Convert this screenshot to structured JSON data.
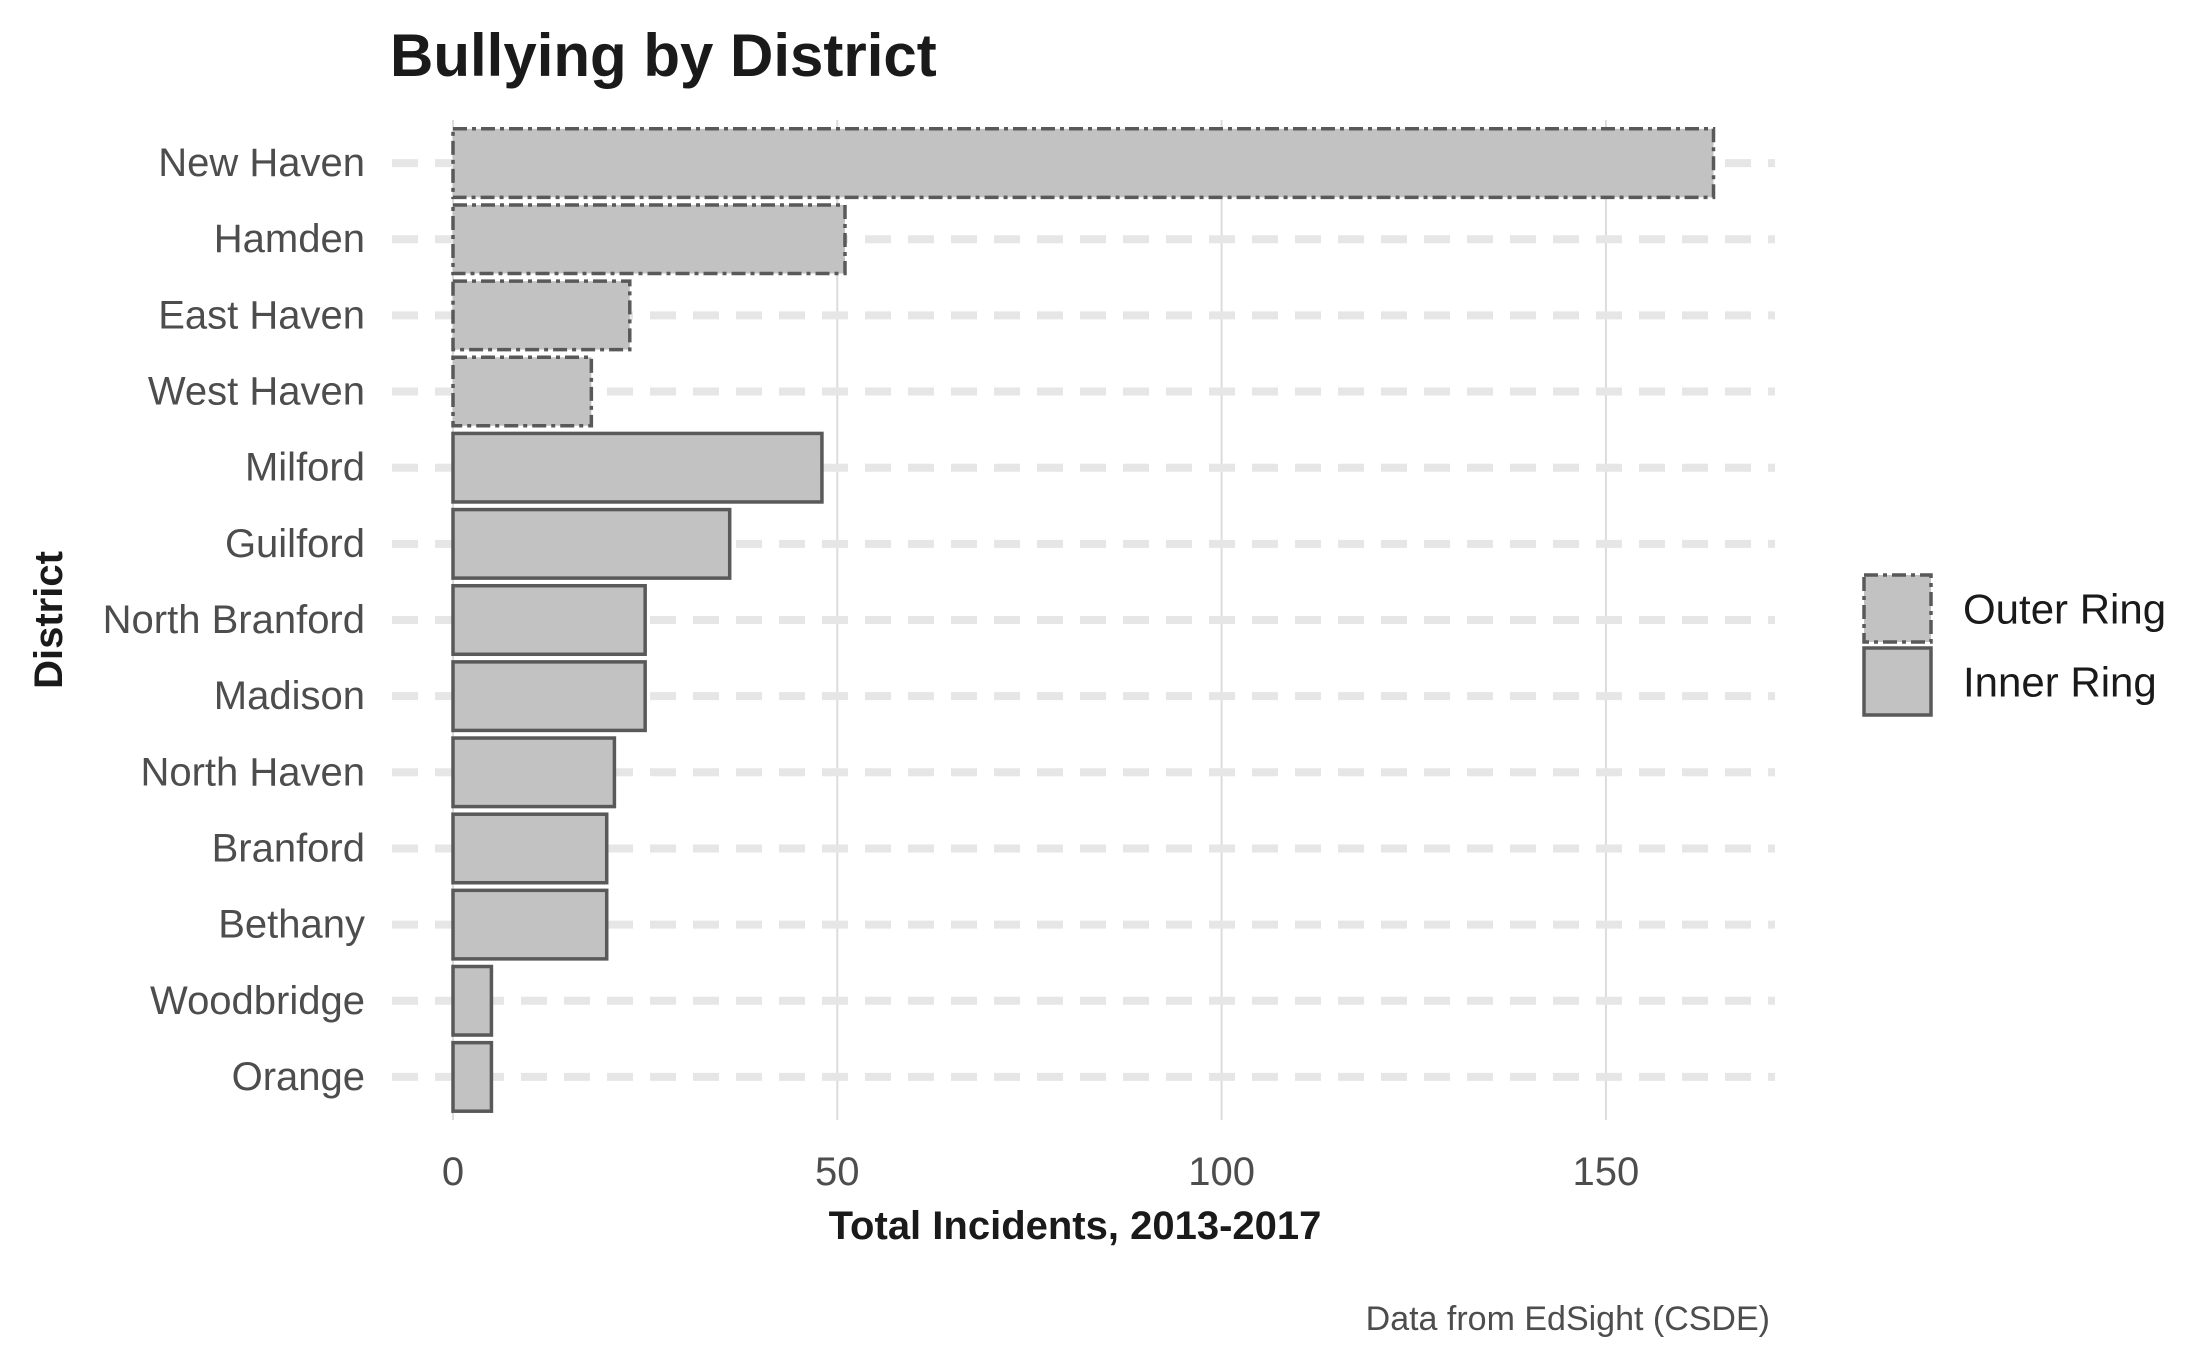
{
  "chart_data": {
    "type": "bar",
    "orientation": "horizontal",
    "title": "Bullying by District",
    "xlabel": "Total Incidents, 2013-2017",
    "ylabel": "District",
    "caption": "Data from EdSight (CSDE)",
    "xlim": [
      0,
      172
    ],
    "xticks": [
      0,
      50,
      100,
      150
    ],
    "grid": true,
    "legend_position": "right",
    "categories": [
      "New Haven",
      "Hamden",
      "East Haven",
      "West Haven",
      "Milford",
      "Guilford",
      "North Branford",
      "Madison",
      "North Haven",
      "Branford",
      "Bethany",
      "Woodbridge",
      "Orange"
    ],
    "values": [
      164,
      51,
      23,
      18,
      48,
      36,
      25,
      25,
      21,
      20,
      20,
      5,
      5
    ],
    "groups": [
      "Outer Ring",
      "Outer Ring",
      "Outer Ring",
      "Outer Ring",
      "Inner Ring",
      "Inner Ring",
      "Inner Ring",
      "Inner Ring",
      "Inner Ring",
      "Inner Ring",
      "Inner Ring",
      "Inner Ring",
      "Inner Ring"
    ],
    "legend": [
      {
        "name": "Outer Ring",
        "line_style": "dashed"
      },
      {
        "name": "Inner Ring",
        "line_style": "solid"
      }
    ],
    "colors": {
      "bar_fill": "#c2c2c2",
      "bar_stroke": "#595959",
      "grid": "#e6e6e6"
    }
  }
}
